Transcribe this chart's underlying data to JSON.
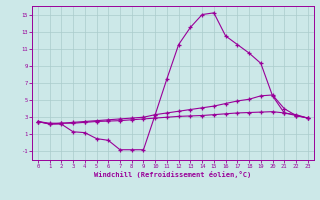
{
  "xlabel": "Windchill (Refroidissement éolien,°C)",
  "background_color": "#cce8e8",
  "grid_color": "#aacccc",
  "line_color": "#990099",
  "x_ticks": [
    0,
    1,
    2,
    3,
    4,
    5,
    6,
    7,
    8,
    9,
    10,
    11,
    12,
    13,
    14,
    15,
    16,
    17,
    18,
    19,
    20,
    21,
    22,
    23
  ],
  "ylim": [
    -2,
    16
  ],
  "yticks": [
    -1,
    1,
    3,
    5,
    7,
    9,
    11,
    13,
    15
  ],
  "line1_y": [
    2.5,
    2.2,
    2.2,
    1.3,
    1.2,
    0.5,
    0.3,
    -0.8,
    -0.8,
    -0.8,
    3.3,
    7.5,
    11.5,
    13.5,
    15.0,
    15.2,
    12.5,
    11.5,
    10.5,
    9.3,
    5.5,
    3.5,
    3.2,
    2.9
  ],
  "line2_y": [
    2.5,
    2.2,
    2.3,
    2.4,
    2.5,
    2.6,
    2.7,
    2.8,
    2.9,
    3.0,
    3.3,
    3.5,
    3.7,
    3.9,
    4.1,
    4.3,
    4.6,
    4.9,
    5.1,
    5.5,
    5.6,
    4.0,
    3.2,
    2.9
  ],
  "line3_y": [
    2.5,
    2.3,
    2.3,
    2.3,
    2.4,
    2.5,
    2.55,
    2.6,
    2.7,
    2.8,
    2.9,
    3.0,
    3.1,
    3.15,
    3.2,
    3.3,
    3.4,
    3.5,
    3.55,
    3.6,
    3.65,
    3.5,
    3.3,
    2.9
  ]
}
